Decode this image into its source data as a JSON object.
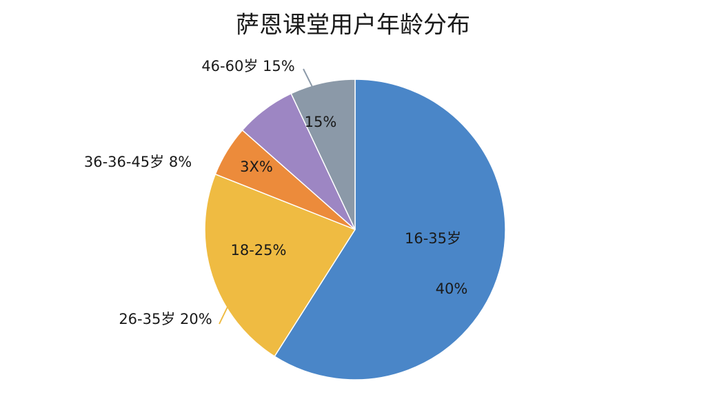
{
  "chart_data": {
    "type": "pie",
    "title": "萨恩课堂用户年龄分布",
    "categories": [
      null,
      null,
      null,
      null,
      null
    ],
    "values": [
      59,
      22,
      5.5,
      6.5,
      7
    ],
    "colors": [
      "#4a86c8",
      "#efbb42",
      "#ec8b3b",
      "#9d86c3",
      "#8b99a8"
    ],
    "annotations": [
      "16-35岁",
      "40%",
      "18-25%",
      "26-35岁 20%",
      "3X%",
      "36-36-45岁 8%",
      "15%",
      "46-60岁 15%"
    ]
  }
}
